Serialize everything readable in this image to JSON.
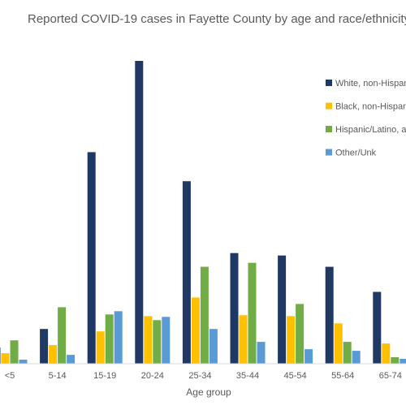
{
  "chart_data": {
    "type": "bar",
    "title": "Reported COVID-19 cases in Fayette County by age and race/ethnicity",
    "xlabel": "Age group",
    "ylabel": "",
    "categories": [
      "<5",
      "5-14",
      "15-19",
      "20-24",
      "25-34",
      "35-44",
      "45-54",
      "55-64",
      "65-74"
    ],
    "series": [
      {
        "name": "White, non-Hispanic",
        "color": "#203864",
        "values": [
          20,
          43,
          262,
          375,
          226,
          137,
          134,
          120,
          89
        ]
      },
      {
        "name": "Black, non-Hispanic",
        "color": "#FFC000",
        "values": [
          13,
          23,
          40,
          59,
          82,
          60,
          59,
          50,
          25
        ]
      },
      {
        "name": "Hispanic/Latino, any race",
        "color": "#70AD47",
        "values": [
          29,
          70,
          61,
          54,
          120,
          125,
          74,
          27,
          8
        ]
      },
      {
        "name": "Other/Unk",
        "color": "#5B9BD5",
        "values": [
          5,
          11,
          65,
          58,
          43,
          27,
          18,
          16,
          6
        ]
      }
    ],
    "ylim": [
      0,
      400
    ],
    "grid": false,
    "legend_position": "right"
  }
}
